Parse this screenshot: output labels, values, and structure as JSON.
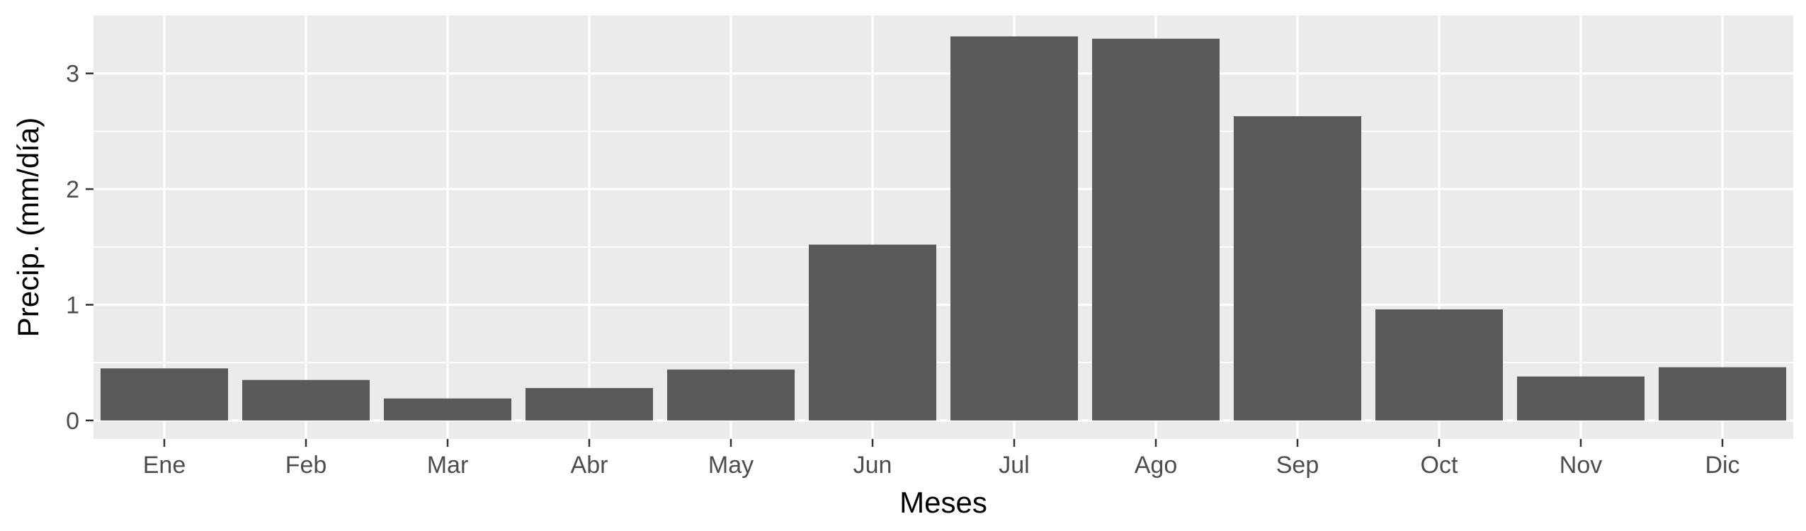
{
  "chart_data": {
    "type": "bar",
    "title": "",
    "xlabel": "Meses",
    "ylabel": "Precip. (mm/día)",
    "categories": [
      "Ene",
      "Feb",
      "Mar",
      "Abr",
      "May",
      "Jun",
      "Jul",
      "Ago",
      "Sep",
      "Oct",
      "Nov",
      "Dic"
    ],
    "values": [
      0.45,
      0.35,
      0.19,
      0.28,
      0.44,
      1.52,
      3.32,
      3.3,
      2.63,
      0.96,
      0.38,
      0.46
    ],
    "ylim": [
      -0.16,
      3.5
    ],
    "yticks": [
      0,
      1,
      2,
      3
    ],
    "ytick_labels": [
      "0",
      "1",
      "2",
      "3"
    ],
    "grid": true,
    "legend": "none",
    "colors": {
      "bar": "#595959",
      "panel": "#ebebeb",
      "grid_major": "#ffffff",
      "tick_text": "#4d4d4d",
      "axis_title": "#000000"
    }
  }
}
